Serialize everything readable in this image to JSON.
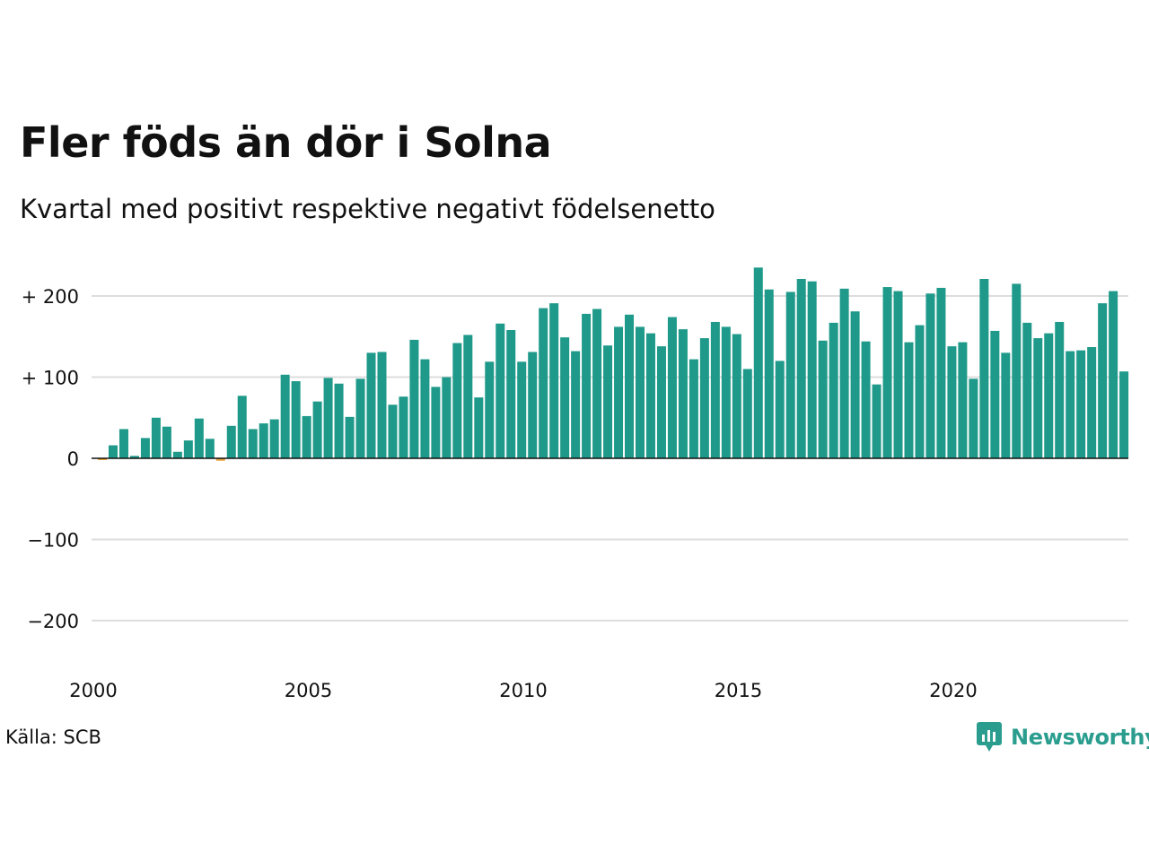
{
  "title": "Fler föds än dör i Solna",
  "subtitle": "Kvartal med positivt respektive negativt födelsenetto",
  "source": "Källa: SCB",
  "logo_text": "Newsworthy",
  "colors": {
    "positive": "#1f9a8a",
    "negative": "#e8a23a",
    "grid": "#dddddd",
    "axis": "#111111",
    "logo": "#2a9d8f"
  },
  "chart_data": {
    "type": "bar",
    "x_start_year": 2000,
    "x_start_quarter": 1,
    "ylim": [
      -240,
      240
    ],
    "y_ticks": [
      {
        "value": 200,
        "label": "+ 200"
      },
      {
        "value": 100,
        "label": "+ 100"
      },
      {
        "value": 0,
        "label": "0"
      },
      {
        "value": -100,
        "label": "−100"
      },
      {
        "value": -200,
        "label": "−200"
      }
    ],
    "x_ticks": [
      {
        "value": 2000,
        "label": "2000"
      },
      {
        "value": 2005,
        "label": "2005"
      },
      {
        "value": 2010,
        "label": "2010"
      },
      {
        "value": 2015,
        "label": "2015"
      },
      {
        "value": 2020,
        "label": "2020"
      }
    ],
    "grid": true,
    "values": [
      -2,
      16,
      36,
      3,
      25,
      50,
      39,
      8,
      22,
      49,
      24,
      -3,
      40,
      77,
      36,
      43,
      48,
      103,
      95,
      52,
      70,
      99,
      92,
      51,
      98,
      130,
      131,
      66,
      76,
      146,
      122,
      88,
      100,
      142,
      152,
      75,
      119,
      166,
      158,
      119,
      131,
      185,
      191,
      149,
      132,
      178,
      184,
      139,
      162,
      177,
      162,
      154,
      138,
      174,
      159,
      122,
      148,
      168,
      162,
      153,
      110,
      235,
      208,
      120,
      205,
      221,
      218,
      145,
      167,
      209,
      181,
      144,
      91,
      211,
      206,
      143,
      164,
      203,
      210,
      138,
      143,
      98,
      221,
      157,
      130,
      215,
      167,
      148,
      154,
      168,
      132,
      133,
      137,
      191,
      206,
      107
    ]
  }
}
